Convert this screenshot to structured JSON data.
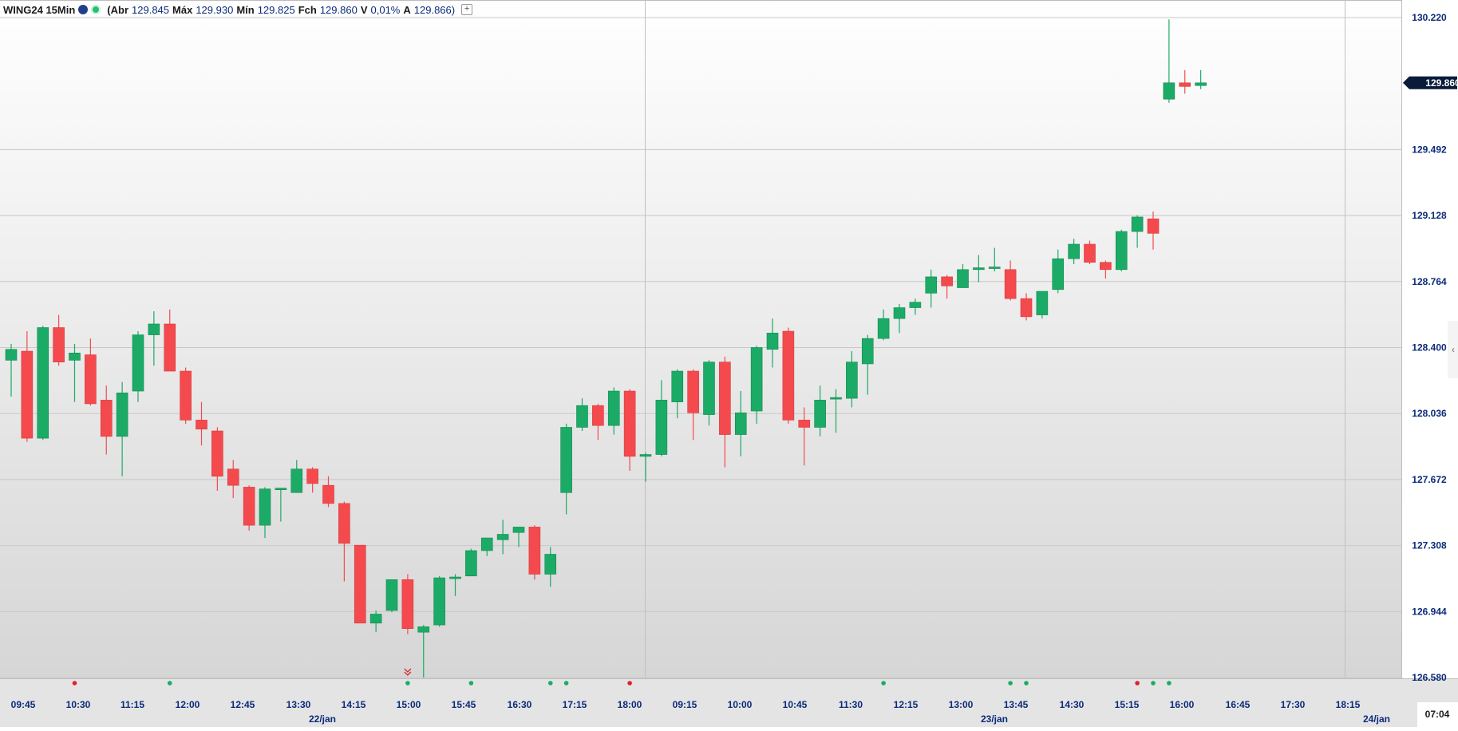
{
  "header": {
    "symbol": "WING24 15Min",
    "abr_label": "(Abr",
    "abr": "129.845",
    "max_label": "Máx",
    "max": "129.930",
    "min_label": "Mín",
    "min": "129.825",
    "fch_label": "Fch",
    "fch": "129.860",
    "v_label": "V",
    "v": "0,01%",
    "a_label": "A",
    "a": "129.866)"
  },
  "colors": {
    "up": "#1bab66",
    "down": "#f44a4d",
    "axis_text": "#0b2a7a",
    "grid": "#c8c8c8",
    "price_tag": "#0a1a3a",
    "signal_red": "#e0202a",
    "signal_green": "#1bab66"
  },
  "chart_data": {
    "type": "candlestick",
    "ylim": [
      126.58,
      130.22
    ],
    "y_ticks": [
      "130.220",
      "129.492",
      "129.128",
      "128.764",
      "128.400",
      "128.036",
      "127.672",
      "127.308",
      "126.944",
      "126.580"
    ],
    "last_price_label": "129.860",
    "x_time_labels": [
      "09:45",
      "10:30",
      "11:15",
      "12:00",
      "12:45",
      "13:30",
      "14:15",
      "15:00",
      "15:45",
      "16:30",
      "17:15",
      "18:00",
      "09:15",
      "10:00",
      "10:45",
      "11:30",
      "12:15",
      "13:00",
      "13:45",
      "14:30",
      "15:15",
      "16:00",
      "16:45",
      "17:30",
      "18:15"
    ],
    "x_date_labels": [
      "22/jan",
      "23/jan",
      "24/jan"
    ],
    "clock": "07:04",
    "candles": [
      {
        "o": 128.33,
        "h": 128.42,
        "l": 128.13,
        "c": 128.39
      },
      {
        "o": 128.38,
        "h": 128.49,
        "l": 127.88,
        "c": 127.9
      },
      {
        "o": 127.9,
        "h": 128.52,
        "l": 127.89,
        "c": 128.51
      },
      {
        "o": 128.51,
        "h": 128.58,
        "l": 128.3,
        "c": 128.32
      },
      {
        "o": 128.33,
        "h": 128.42,
        "l": 128.1,
        "c": 128.37
      },
      {
        "o": 128.36,
        "h": 128.45,
        "l": 128.08,
        "c": 128.09
      },
      {
        "o": 128.11,
        "h": 128.19,
        "l": 127.81,
        "c": 127.91
      },
      {
        "o": 127.91,
        "h": 128.21,
        "l": 127.69,
        "c": 128.15
      },
      {
        "o": 128.16,
        "h": 128.49,
        "l": 128.1,
        "c": 128.47
      },
      {
        "o": 128.47,
        "h": 128.6,
        "l": 128.3,
        "c": 128.53
      },
      {
        "o": 128.53,
        "h": 128.61,
        "l": 128.28,
        "c": 128.27
      },
      {
        "o": 128.27,
        "h": 128.29,
        "l": 127.98,
        "c": 128.0
      },
      {
        "o": 128.0,
        "h": 128.1,
        "l": 127.86,
        "c": 127.95
      },
      {
        "o": 127.94,
        "h": 127.96,
        "l": 127.61,
        "c": 127.69
      },
      {
        "o": 127.73,
        "h": 127.78,
        "l": 127.57,
        "c": 127.64
      },
      {
        "o": 127.63,
        "h": 127.64,
        "l": 127.39,
        "c": 127.42
      },
      {
        "o": 127.42,
        "h": 127.63,
        "l": 127.35,
        "c": 127.62
      },
      {
        "o": 127.62,
        "h": 127.62,
        "l": 127.44,
        "c": 127.62
      },
      {
        "o": 127.6,
        "h": 127.78,
        "l": 127.61,
        "c": 127.73
      },
      {
        "o": 127.73,
        "h": 127.74,
        "l": 127.6,
        "c": 127.65
      },
      {
        "o": 127.64,
        "h": 127.69,
        "l": 127.52,
        "c": 127.54
      },
      {
        "o": 127.54,
        "h": 127.55,
        "l": 127.11,
        "c": 127.32
      },
      {
        "o": 127.31,
        "h": 127.31,
        "l": 126.88,
        "c": 126.88
      },
      {
        "o": 126.88,
        "h": 126.95,
        "l": 126.83,
        "c": 126.93
      },
      {
        "o": 126.95,
        "h": 127.12,
        "l": 126.94,
        "c": 127.12
      },
      {
        "o": 127.12,
        "h": 127.15,
        "l": 126.82,
        "c": 126.85
      },
      {
        "o": 126.83,
        "h": 126.87,
        "l": 126.58,
        "c": 126.86
      },
      {
        "o": 126.87,
        "h": 127.14,
        "l": 126.86,
        "c": 127.13
      },
      {
        "o": 127.13,
        "h": 127.15,
        "l": 127.03,
        "c": 127.13
      },
      {
        "o": 127.14,
        "h": 127.29,
        "l": 127.14,
        "c": 127.28
      },
      {
        "o": 127.28,
        "h": 127.35,
        "l": 127.25,
        "c": 127.35
      },
      {
        "o": 127.34,
        "h": 127.45,
        "l": 127.26,
        "c": 127.37
      },
      {
        "o": 127.38,
        "h": 127.39,
        "l": 127.3,
        "c": 127.41
      },
      {
        "o": 127.41,
        "h": 127.42,
        "l": 127.12,
        "c": 127.15
      },
      {
        "o": 127.15,
        "h": 127.3,
        "l": 127.08,
        "c": 127.26
      },
      {
        "o": 127.6,
        "h": 127.98,
        "l": 127.48,
        "c": 127.96
      },
      {
        "o": 127.96,
        "h": 128.12,
        "l": 127.94,
        "c": 128.08
      },
      {
        "o": 128.08,
        "h": 128.09,
        "l": 127.89,
        "c": 127.97
      },
      {
        "o": 127.97,
        "h": 128.18,
        "l": 127.92,
        "c": 128.16
      },
      {
        "o": 128.16,
        "h": 128.17,
        "l": 127.72,
        "c": 127.8
      },
      {
        "o": 127.8,
        "h": 127.82,
        "l": 127.66,
        "c": 127.81
      },
      {
        "o": 127.81,
        "h": 128.22,
        "l": 127.8,
        "c": 128.11
      },
      {
        "o": 128.1,
        "h": 128.28,
        "l": 128.01,
        "c": 128.27
      },
      {
        "o": 128.27,
        "h": 128.28,
        "l": 127.89,
        "c": 128.04
      },
      {
        "o": 128.03,
        "h": 128.33,
        "l": 127.97,
        "c": 128.32
      },
      {
        "o": 128.32,
        "h": 128.35,
        "l": 127.74,
        "c": 127.92
      },
      {
        "o": 127.92,
        "h": 128.16,
        "l": 127.8,
        "c": 128.04
      },
      {
        "o": 128.05,
        "h": 128.41,
        "l": 127.98,
        "c": 128.4
      },
      {
        "o": 128.39,
        "h": 128.56,
        "l": 128.29,
        "c": 128.48
      },
      {
        "o": 128.49,
        "h": 128.51,
        "l": 127.98,
        "c": 128.0
      },
      {
        "o": 128.0,
        "h": 128.07,
        "l": 127.75,
        "c": 127.96
      },
      {
        "o": 127.96,
        "h": 128.19,
        "l": 127.91,
        "c": 128.11
      },
      {
        "o": 128.12,
        "h": 128.17,
        "l": 127.93,
        "c": 128.12
      },
      {
        "o": 128.12,
        "h": 128.38,
        "l": 128.07,
        "c": 128.32
      },
      {
        "o": 128.31,
        "h": 128.47,
        "l": 128.14,
        "c": 128.45
      },
      {
        "o": 128.45,
        "h": 128.61,
        "l": 128.44,
        "c": 128.56
      },
      {
        "o": 128.56,
        "h": 128.64,
        "l": 128.48,
        "c": 128.62
      },
      {
        "o": 128.62,
        "h": 128.67,
        "l": 128.58,
        "c": 128.65
      },
      {
        "o": 128.7,
        "h": 128.83,
        "l": 128.62,
        "c": 128.79
      },
      {
        "o": 128.79,
        "h": 128.8,
        "l": 128.67,
        "c": 128.74
      },
      {
        "o": 128.73,
        "h": 128.86,
        "l": 128.73,
        "c": 128.83
      },
      {
        "o": 128.83,
        "h": 128.91,
        "l": 128.76,
        "c": 128.84
      },
      {
        "o": 128.84,
        "h": 128.95,
        "l": 128.82,
        "c": 128.84
      },
      {
        "o": 128.83,
        "h": 128.88,
        "l": 128.66,
        "c": 128.67
      },
      {
        "o": 128.67,
        "h": 128.7,
        "l": 128.55,
        "c": 128.57
      },
      {
        "o": 128.58,
        "h": 128.7,
        "l": 128.56,
        "c": 128.71
      },
      {
        "o": 128.72,
        "h": 128.94,
        "l": 128.7,
        "c": 128.89
      },
      {
        "o": 128.89,
        "h": 129.0,
        "l": 128.86,
        "c": 128.97
      },
      {
        "o": 128.97,
        "h": 128.99,
        "l": 128.86,
        "c": 128.87
      },
      {
        "o": 128.87,
        "h": 128.88,
        "l": 128.78,
        "c": 128.83
      },
      {
        "o": 128.83,
        "h": 129.05,
        "l": 128.82,
        "c": 129.04
      },
      {
        "o": 129.04,
        "h": 129.13,
        "l": 128.95,
        "c": 129.12
      },
      {
        "o": 129.11,
        "h": 129.15,
        "l": 128.94,
        "c": 129.03
      },
      {
        "o": 129.77,
        "h": 130.21,
        "l": 129.75,
        "c": 129.86
      },
      {
        "o": 129.86,
        "h": 129.93,
        "l": 129.8,
        "c": 129.84
      },
      {
        "o": 129.845,
        "h": 129.93,
        "l": 129.825,
        "c": 129.86
      }
    ],
    "signals": [
      {
        "i": 4,
        "color": "red"
      },
      {
        "i": 10,
        "color": "green"
      },
      {
        "i": 25,
        "color": "green"
      },
      {
        "i": 29,
        "color": "green"
      },
      {
        "i": 34,
        "color": "green"
      },
      {
        "i": 35,
        "color": "green"
      },
      {
        "i": 39,
        "color": "red"
      },
      {
        "i": 55,
        "color": "green"
      },
      {
        "i": 63,
        "color": "green"
      },
      {
        "i": 64,
        "color": "green"
      },
      {
        "i": 71,
        "color": "red"
      },
      {
        "i": 72,
        "color": "green"
      },
      {
        "i": 73,
        "color": "green"
      }
    ],
    "markers": [
      {
        "i": 25,
        "type": "double-chevron-down"
      }
    ]
  }
}
